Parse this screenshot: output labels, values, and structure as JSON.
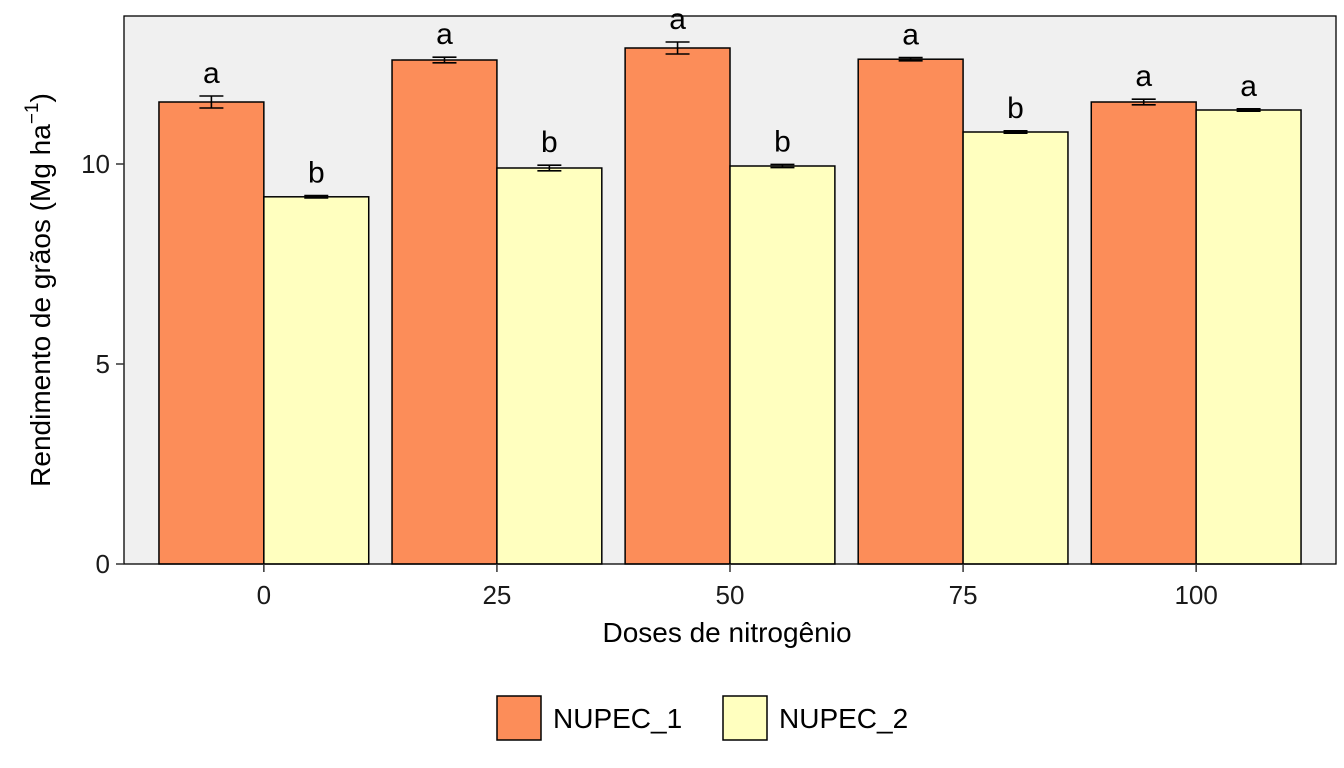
{
  "chart_data": {
    "type": "bar",
    "xlabel": "Doses de nitrogênio",
    "ylabel_main": "Rendimento de grãos (Mg ha",
    "ylabel_sup": "−1",
    "ylabel_close": ")",
    "categories": [
      "0",
      "25",
      "50",
      "75",
      "100"
    ],
    "ylim": [
      0,
      13.7
    ],
    "yticks": [
      0,
      5,
      10
    ],
    "ytick_labels": [
      "0",
      "5",
      "10"
    ],
    "grid": false,
    "legend_position": "bottom",
    "series": [
      {
        "name": "NUPEC_1",
        "color": "#fc8d59",
        "values": [
          11.55,
          12.6,
          12.9,
          12.62,
          11.55
        ],
        "errors": [
          0.15,
          0.07,
          0.15,
          0.04,
          0.07
        ],
        "letters": [
          "a",
          "a",
          "a",
          "a",
          "a"
        ]
      },
      {
        "name": "NUPEC_2",
        "color": "#ffffbf",
        "values": [
          9.18,
          9.9,
          9.95,
          10.8,
          11.35
        ],
        "errors": [
          0.03,
          0.07,
          0.04,
          0.03,
          0.03
        ],
        "letters": [
          "b",
          "b",
          "b",
          "b",
          "a"
        ]
      }
    ]
  }
}
